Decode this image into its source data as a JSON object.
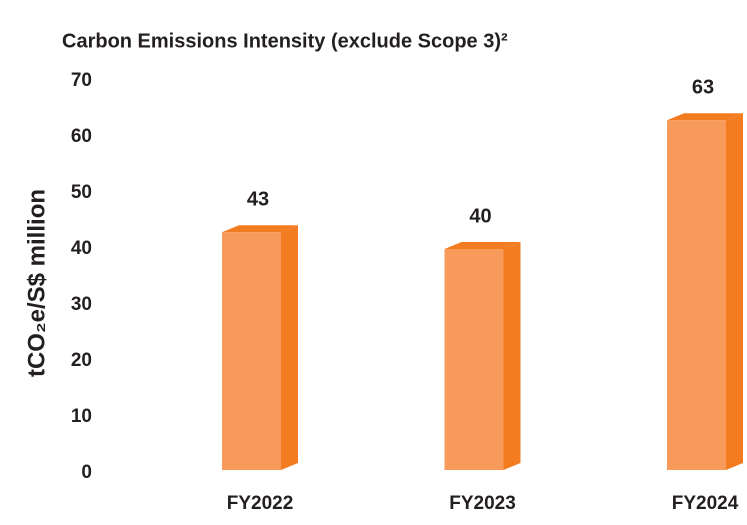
{
  "chart_data": {
    "type": "bar",
    "title": "Carbon Emissions Intensity (exclude Scope 3)²",
    "y_label": "tCO₂e/S$ million",
    "categories": [
      "FY2022",
      "FY2023",
      "FY2024"
    ],
    "values": [
      43,
      40,
      63
    ],
    "color": "#f79a5a",
    "side_color": "#f47c20",
    "ylim": [
      0,
      70
    ],
    "yticks": [
      0,
      10,
      20,
      30,
      40,
      50,
      60,
      70
    ],
    "grid": false
  }
}
